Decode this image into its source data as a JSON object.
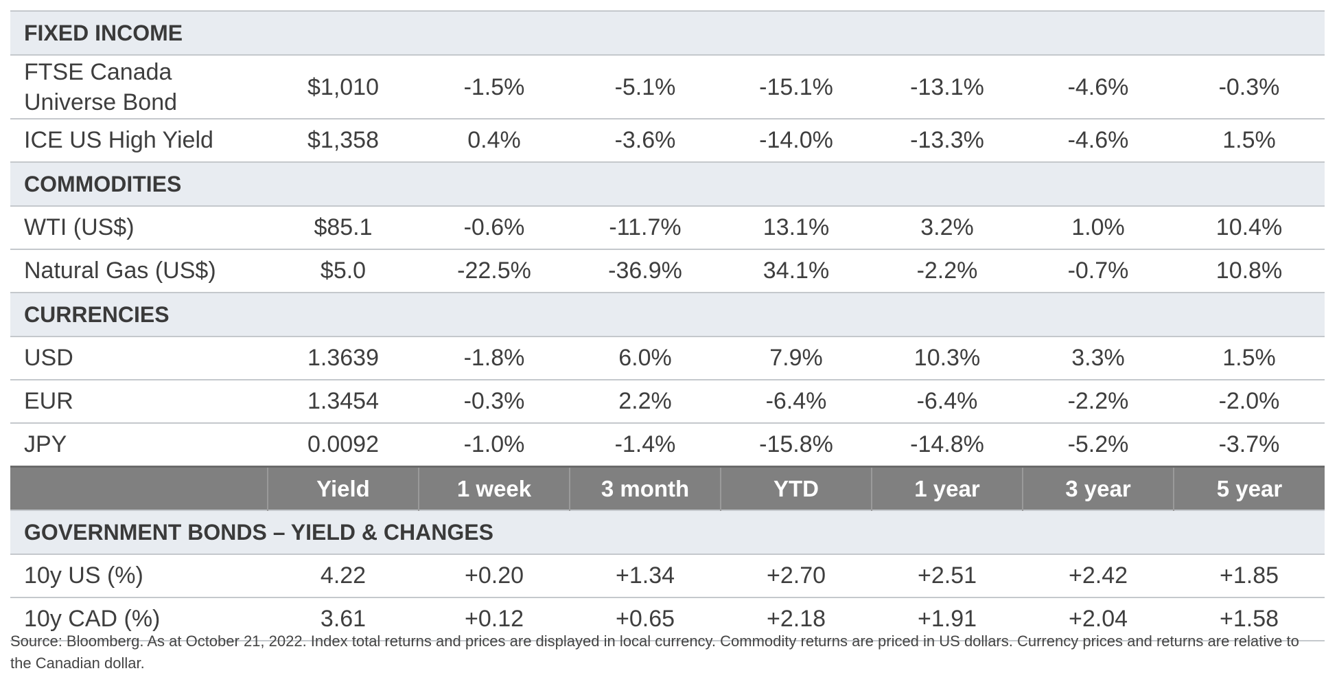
{
  "fixed_income": {
    "title": "FIXED INCOME",
    "rows": [
      {
        "name": "FTSE Canada Universe Bond",
        "values": [
          "$1,010",
          "-1.5%",
          "-5.1%",
          "-15.1%",
          "-13.1%",
          "-4.6%",
          "-0.3%"
        ]
      },
      {
        "name": "ICE US High Yield",
        "values": [
          "$1,358",
          "0.4%",
          "-3.6%",
          "-14.0%",
          "-13.3%",
          "-4.6%",
          "1.5%"
        ]
      }
    ]
  },
  "commodities": {
    "title": "COMMODITIES",
    "rows": [
      {
        "name": "WTI (US$)",
        "values": [
          "$85.1",
          "-0.6%",
          "-11.7%",
          "13.1%",
          "3.2%",
          "1.0%",
          "10.4%"
        ]
      },
      {
        "name": "Natural Gas (US$)",
        "values": [
          "$5.0",
          "-22.5%",
          "-36.9%",
          "34.1%",
          "-2.2%",
          "-0.7%",
          "10.8%"
        ]
      }
    ]
  },
  "currencies": {
    "title": "CURRENCIES",
    "rows": [
      {
        "name": "USD",
        "values": [
          "1.3639",
          "-1.8%",
          "6.0%",
          "7.9%",
          "10.3%",
          "3.3%",
          "1.5%"
        ]
      },
      {
        "name": "EUR",
        "values": [
          "1.3454",
          "-0.3%",
          "2.2%",
          "-6.4%",
          "-6.4%",
          "-2.2%",
          "-2.0%"
        ]
      },
      {
        "name": "JPY",
        "values": [
          "0.0092",
          "-1.0%",
          "-1.4%",
          "-15.8%",
          "-14.8%",
          "-5.2%",
          "-3.7%"
        ]
      }
    ]
  },
  "header": [
    "",
    "Yield",
    "1 week",
    "3 month",
    "YTD",
    "1 year",
    "3 year",
    "5 year"
  ],
  "gov_bonds": {
    "title": "GOVERNMENT BONDS – YIELD & CHANGES",
    "rows": [
      {
        "name": "10y US (%)",
        "values": [
          "4.22",
          "+0.20",
          "+1.34",
          "+2.70",
          "+2.51",
          "+2.42",
          "+1.85"
        ]
      },
      {
        "name": "10y CAD (%)",
        "values": [
          "3.61",
          "+0.12",
          "+0.65",
          "+2.18",
          "+1.91",
          "+2.04",
          "+1.58"
        ]
      }
    ]
  },
  "source_note": "Source: Bloomberg. As at October 21, 2022. Index total returns and prices are displayed in local currency. Commodity returns are priced in US dollars. Currency prices and returns are relative to the Canadian dollar."
}
